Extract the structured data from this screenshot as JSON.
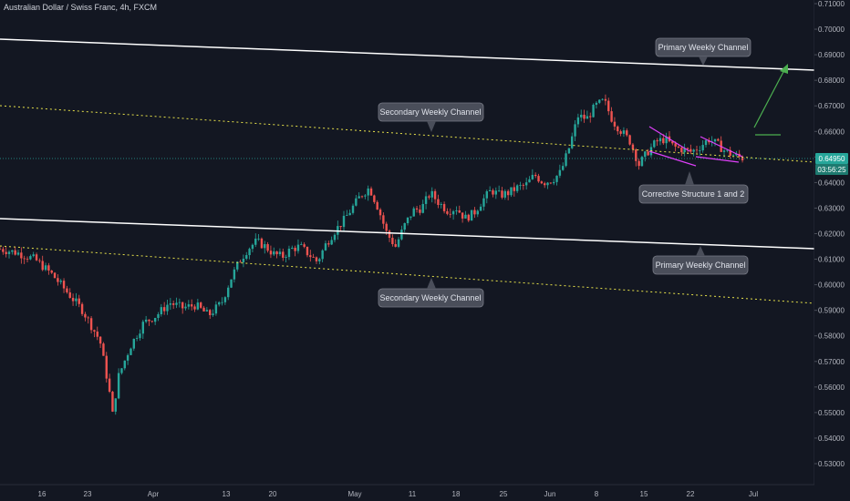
{
  "header": {
    "title": "Australian Dollar / Swiss Franc, 4h, FXCM"
  },
  "chart_data": {
    "type": "candlestick",
    "symbol": "Australian Dollar / Swiss Franc",
    "timeframe": "4h",
    "source": "FXCM",
    "grid": false,
    "y_axis": {
      "ticks": [
        "0.71000",
        "0.70000",
        "0.69000",
        "0.68000",
        "0.67000",
        "0.66000",
        "0.65000",
        "0.64000",
        "0.63000",
        "0.62000",
        "0.61000",
        "0.60000",
        "0.59000",
        "0.58000",
        "0.57000",
        "0.56000",
        "0.55000",
        "0.54000",
        "0.53000"
      ],
      "range": [
        0.5255,
        0.7105
      ]
    },
    "x_axis": {
      "ticks": [
        "16",
        "23",
        "Apr",
        "13",
        "20",
        "May",
        "11",
        "18",
        "25",
        "Jun",
        "8",
        "15",
        "22",
        "Jul"
      ]
    },
    "current_price": "0.64950",
    "countdown": "03:56:25",
    "price_path": [
      [
        0,
        0.614
      ],
      [
        4,
        0.6125
      ],
      [
        8,
        0.61
      ],
      [
        12,
        0.604
      ],
      [
        16,
        0.596
      ],
      [
        19,
        0.59
      ],
      [
        23,
        0.578
      ],
      [
        25,
        0.56
      ],
      [
        26,
        0.548
      ],
      [
        27,
        0.563
      ],
      [
        30,
        0.576
      ],
      [
        33,
        0.585
      ],
      [
        36,
        0.588
      ],
      [
        39,
        0.593
      ],
      [
        42,
        0.591
      ],
      [
        45,
        0.592
      ],
      [
        48,
        0.588
      ],
      [
        51,
        0.593
      ],
      [
        53,
        0.602
      ],
      [
        55,
        0.609
      ],
      [
        57,
        0.614
      ],
      [
        59,
        0.617
      ],
      [
        61,
        0.615
      ],
      [
        63,
        0.612
      ],
      [
        65,
        0.611
      ],
      [
        67,
        0.614
      ],
      [
        69,
        0.615
      ],
      [
        71,
        0.612
      ],
      [
        73,
        0.609
      ],
      [
        75,
        0.616
      ],
      [
        77,
        0.621
      ],
      [
        79,
        0.625
      ],
      [
        81,
        0.63
      ],
      [
        83,
        0.635
      ],
      [
        85,
        0.638
      ],
      [
        87,
        0.63
      ],
      [
        89,
        0.62
      ],
      [
        91,
        0.615
      ],
      [
        93,
        0.623
      ],
      [
        95,
        0.629
      ],
      [
        97,
        0.63
      ],
      [
        99,
        0.636
      ],
      [
        101,
        0.632
      ],
      [
        103,
        0.629
      ],
      [
        105,
        0.63
      ],
      [
        107,
        0.626
      ],
      [
        109,
        0.628
      ],
      [
        111,
        0.633
      ],
      [
        113,
        0.637
      ],
      [
        115,
        0.635
      ],
      [
        117,
        0.636
      ],
      [
        119,
        0.638
      ],
      [
        121,
        0.639
      ],
      [
        123,
        0.643
      ],
      [
        125,
        0.64
      ],
      [
        127,
        0.641
      ],
      [
        129,
        0.644
      ],
      [
        131,
        0.654
      ],
      [
        133,
        0.666
      ],
      [
        135,
        0.665
      ],
      [
        137,
        0.67
      ],
      [
        139,
        0.672
      ],
      [
        141,
        0.664
      ],
      [
        143,
        0.66
      ],
      [
        145,
        0.656
      ],
      [
        147,
        0.647
      ],
      [
        149,
        0.652
      ],
      [
        151,
        0.656
      ],
      [
        153,
        0.657
      ],
      [
        155,
        0.654
      ],
      [
        157,
        0.653
      ],
      [
        159,
        0.652
      ],
      [
        161,
        0.654
      ],
      [
        163,
        0.657
      ],
      [
        165,
        0.655
      ],
      [
        167,
        0.652
      ],
      [
        169,
        0.6505
      ],
      [
        171,
        0.6495
      ]
    ],
    "x_day_range": [
      0,
      192
    ],
    "annotations": [
      {
        "text": "Primary Weekly Channel",
        "kind": "upper"
      },
      {
        "text": "Secondary Weekly Channel",
        "kind": "upper"
      },
      {
        "text": "Corrective Structure 1 and 2",
        "kind": "pattern"
      },
      {
        "text": "Primary Weekly Channel",
        "kind": "lower"
      },
      {
        "text": "Secondary Weekly Channel",
        "kind": "lower"
      }
    ],
    "colors": {
      "background": "#131722",
      "up": "#26a69a",
      "down": "#ef5350",
      "channel_primary": "#ffffff",
      "channel_secondary": "#e6e14a",
      "pattern": "#e040fb",
      "arrow": "#4caf50",
      "price_line": "#26a69a",
      "callout": "#4a4e5a"
    }
  }
}
